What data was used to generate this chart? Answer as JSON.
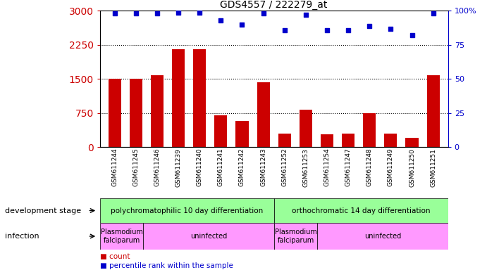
{
  "title": "GDS4557 / 222279_at",
  "samples": [
    "GSM611244",
    "GSM611245",
    "GSM611246",
    "GSM611239",
    "GSM611240",
    "GSM611241",
    "GSM611242",
    "GSM611243",
    "GSM611252",
    "GSM611253",
    "GSM611254",
    "GSM611247",
    "GSM611248",
    "GSM611249",
    "GSM611250",
    "GSM611251"
  ],
  "counts": [
    1500,
    1510,
    1580,
    2160,
    2150,
    700,
    580,
    1430,
    300,
    820,
    280,
    300,
    750,
    300,
    200,
    1590
  ],
  "percentiles": [
    98,
    98,
    98,
    98.5,
    98.5,
    93,
    90,
    98,
    86,
    97,
    86,
    86,
    89,
    87,
    82,
    98
  ],
  "ylim_left": [
    0,
    3000
  ],
  "ylim_right": [
    0,
    100
  ],
  "yticks_left": [
    0,
    750,
    1500,
    2250,
    3000
  ],
  "yticks_right": [
    0,
    25,
    50,
    75,
    100
  ],
  "bar_color": "#cc0000",
  "dot_color": "#0000cc",
  "background_color": "#ffffff",
  "dev_stage_groups": [
    {
      "label": "polychromatophilic 10 day differentiation",
      "start": 0,
      "end": 8,
      "color": "#99ff99"
    },
    {
      "label": "orthochromatic 14 day differentiation",
      "start": 8,
      "end": 16,
      "color": "#99ff99"
    }
  ],
  "infection_groups": [
    {
      "label": "Plasmodium\nfalciparum",
      "start": 0,
      "end": 2,
      "color": "#ff99ff"
    },
    {
      "label": "uninfected",
      "start": 2,
      "end": 8,
      "color": "#ff99ff"
    },
    {
      "label": "Plasmodium\nfalciparum",
      "start": 8,
      "end": 10,
      "color": "#ff99ff"
    },
    {
      "label": "uninfected",
      "start": 10,
      "end": 16,
      "color": "#ff99ff"
    }
  ],
  "legend_count_color": "#cc0000",
  "legend_dot_color": "#0000cc",
  "dev_stage_label": "development stage",
  "infection_label": "infection",
  "title_fontsize": 10
}
